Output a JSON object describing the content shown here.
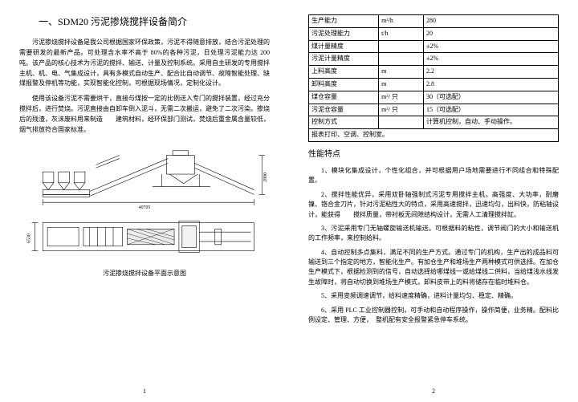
{
  "left": {
    "title": "一、SDM20 污泥掺烧搅拌设备简介",
    "p1": "污泥掺烧搅拌设备是我公司根据国家环保政策，污泥不得随意排放，结合污泥处理的需要研发的最新产品。可处理含水率不高于 80%的各种污泥，日处理污泥能力达 200 吨。该产品的核心技术为污泥的搅拌、输送、计量及控制系统。采用自主研发的专用搅拌主机、机、电、气集成设计，具有多模式自动生产、配合比自动调节、故障智能处理、缺煤报警及停机等功能，实现智能化控制，可根据现场情况，定制化设计。",
    "p2": "使用该设备污泥不需要烘干，直接与煤按一定的比例送入专门的搅拌装置，经过充分搅拌后，进行焚烧。污泥直接由自卸车倒入泥斗，无需二次搬运，避免了二次污染。掺烧后的残渣，灰沫废料用来制造　　建筑材料，经环保部门测试，焚烧后重金属含量较低，烟气排放符合国家标准。",
    "caption": "污泥掺烧搅拌设备平面示意图",
    "pageNum": "1",
    "diagram": {
      "dim1": "40705",
      "dim2": "2800",
      "dim3": "6530"
    }
  },
  "right": {
    "table": [
      [
        "生产能力",
        "m³/h",
        "280"
      ],
      [
        "污泥处理能力",
        "t/h",
        "20"
      ],
      [
        "煤计量精度",
        "",
        "±2%"
      ],
      [
        "污泥计量精度",
        "",
        "±2%"
      ],
      [
        "上料高度",
        "m",
        "2.2"
      ],
      [
        "卸料高度",
        "m",
        "2.8"
      ],
      [
        "煤仓容量",
        "m³/ 只",
        "30（可选配）"
      ],
      [
        "污泥仓容量",
        "m³/ 只",
        "15（可选配）"
      ],
      [
        "控制方式",
        "",
        "计算机控制，自动、手动操作。"
      ],
      [
        "报表打印、空调、控制室。",
        "",
        ""
      ]
    ],
    "h2": "性能特点",
    "items": [
      "1、模块化集成设计，个性化组合，并可根据用户场地需要进行不同组合和特殊配置。",
      "2、搅拌性能优异，采用双卧轴强制式污泥专用搅拌主机。高强度、大功率，耐磨镍、铬合金刀片，针对污泥粘性大的特点，采用高速搅拌，迅速均匀，出料快，防粘轴设计，能获得　　搅拌质量，带衬板无间隙结构设计，无需人工清理搅拌缸。",
      "3、污泥采用专门无轴螺旋输送机输送。可根据料的粘性，调节阀门的大小和输送机的工作频率，来控制给料。",
      "4、自动控制多点集料，满足不同的生产方式。通过专门的机构，生产出的成品料可输送到三个指定的地方，智能化生产。有加仓生产和堆场生产两种模式可供选择。在加仓生产模式下，根据检测到的信号，自动选择给哪煤线一或给煤线二供料，当给煤浅水线发生故障时，将自动切换到堆场生产模式，卸料皮带上的料将储存在临时堆料仓。",
      "5、采用变频调速调节，给料速度精确，进料计量均匀、稳定、精确。",
      "6、采用 PLC 工业控制器控制，可手动和自动程序操作，操作简便，业务精。配料比例设定、管理、方便，　整机配有安全报警紧急停车系统。"
    ],
    "pageNum": "2"
  }
}
